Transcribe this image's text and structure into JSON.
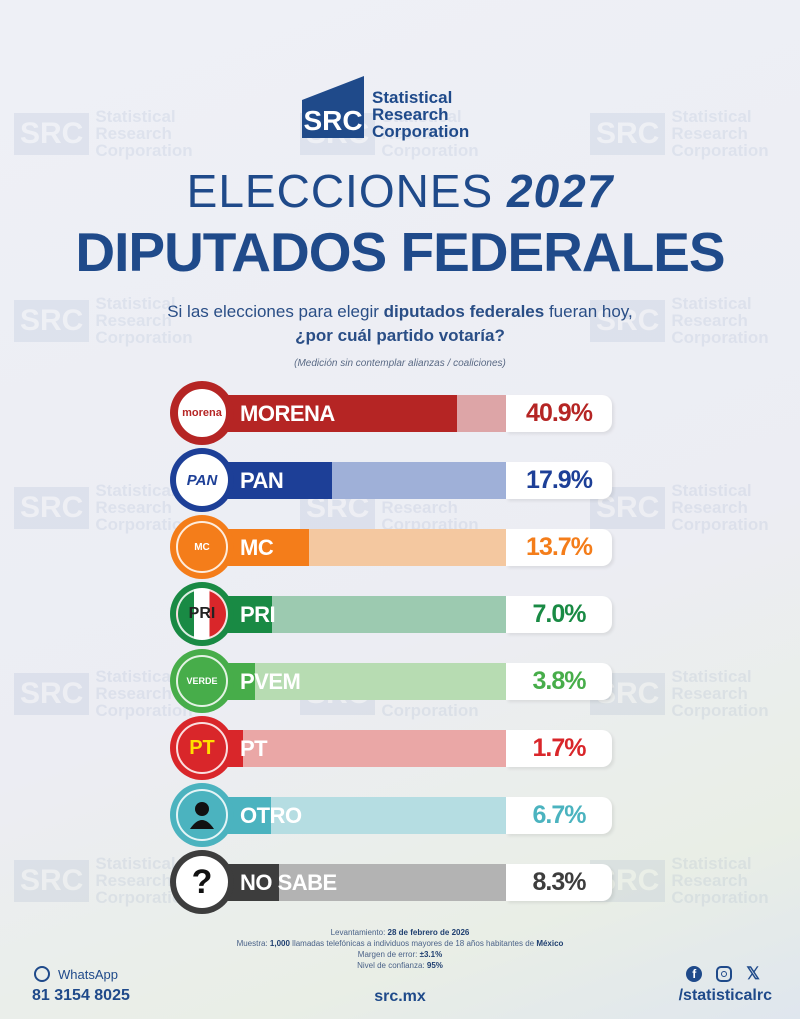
{
  "brand": {
    "logo_abbr": "SRC",
    "logo_lines": [
      "Statistical",
      "Research",
      "Corporation"
    ],
    "watermark_text": "SRC Statistical Research Corporation"
  },
  "header": {
    "title_prefix": "ELECCIONES",
    "title_year": "2027",
    "title_main": "DIPUTADOS FEDERALES"
  },
  "question": {
    "part1": "Si las elecciones para elegir ",
    "bold1": "diputados federales",
    "part2": " fueran hoy,",
    "line2": "¿por cuál partido votaría?",
    "note": "(Medición sin contemplar alianzas / coaliciones)"
  },
  "chart_data": {
    "type": "bar",
    "orientation": "horizontal",
    "categories": [
      "MORENA",
      "PAN",
      "MC",
      "PRI",
      "PVEM",
      "PT",
      "OTRO",
      "NO SABE"
    ],
    "values": [
      40.9,
      17.9,
      13.7,
      7.0,
      3.8,
      1.7,
      6.7,
      8.3
    ],
    "value_labels": [
      "40.9%",
      "17.9%",
      "13.7%",
      "7.0%",
      "3.8%",
      "1.7%",
      "6.7%",
      "8.3%"
    ],
    "unit": "%",
    "colors": [
      "#b52524",
      "#1d3f97",
      "#f47d1a",
      "#198a44",
      "#47ad4a",
      "#d9262a",
      "#4bb3bf",
      "#3d3d3d"
    ],
    "track_colors": [
      "#dda5a7",
      "#9fb0d8",
      "#f4c8a0",
      "#9ccab0",
      "#b7dcb2",
      "#eaa7a6",
      "#b5dde2",
      "#b3b3b3"
    ],
    "logo_texts": [
      "morena",
      "PAN",
      "MC",
      "PRI",
      "VERDE",
      "PT",
      "",
      "?"
    ],
    "grid": false,
    "legend": "none"
  },
  "footer": {
    "survey_date_label": "Levantamiento: ",
    "survey_date": "28 de febrero de 2026",
    "sample_label": "Muestra: ",
    "sample_count": "1,000",
    "sample_text": " llamadas telefónicas a individuos mayores de 18 años habitantes de ",
    "sample_place": "México",
    "margin_label": "Margen de error: ",
    "margin": "±3.1%",
    "confidence_label": "Nivel de confianza: ",
    "confidence": "95%",
    "whatsapp_label": "WhatsApp",
    "phone": "81 3154 8025",
    "website": "src.mx",
    "social_handle": "/statisticalrc"
  }
}
